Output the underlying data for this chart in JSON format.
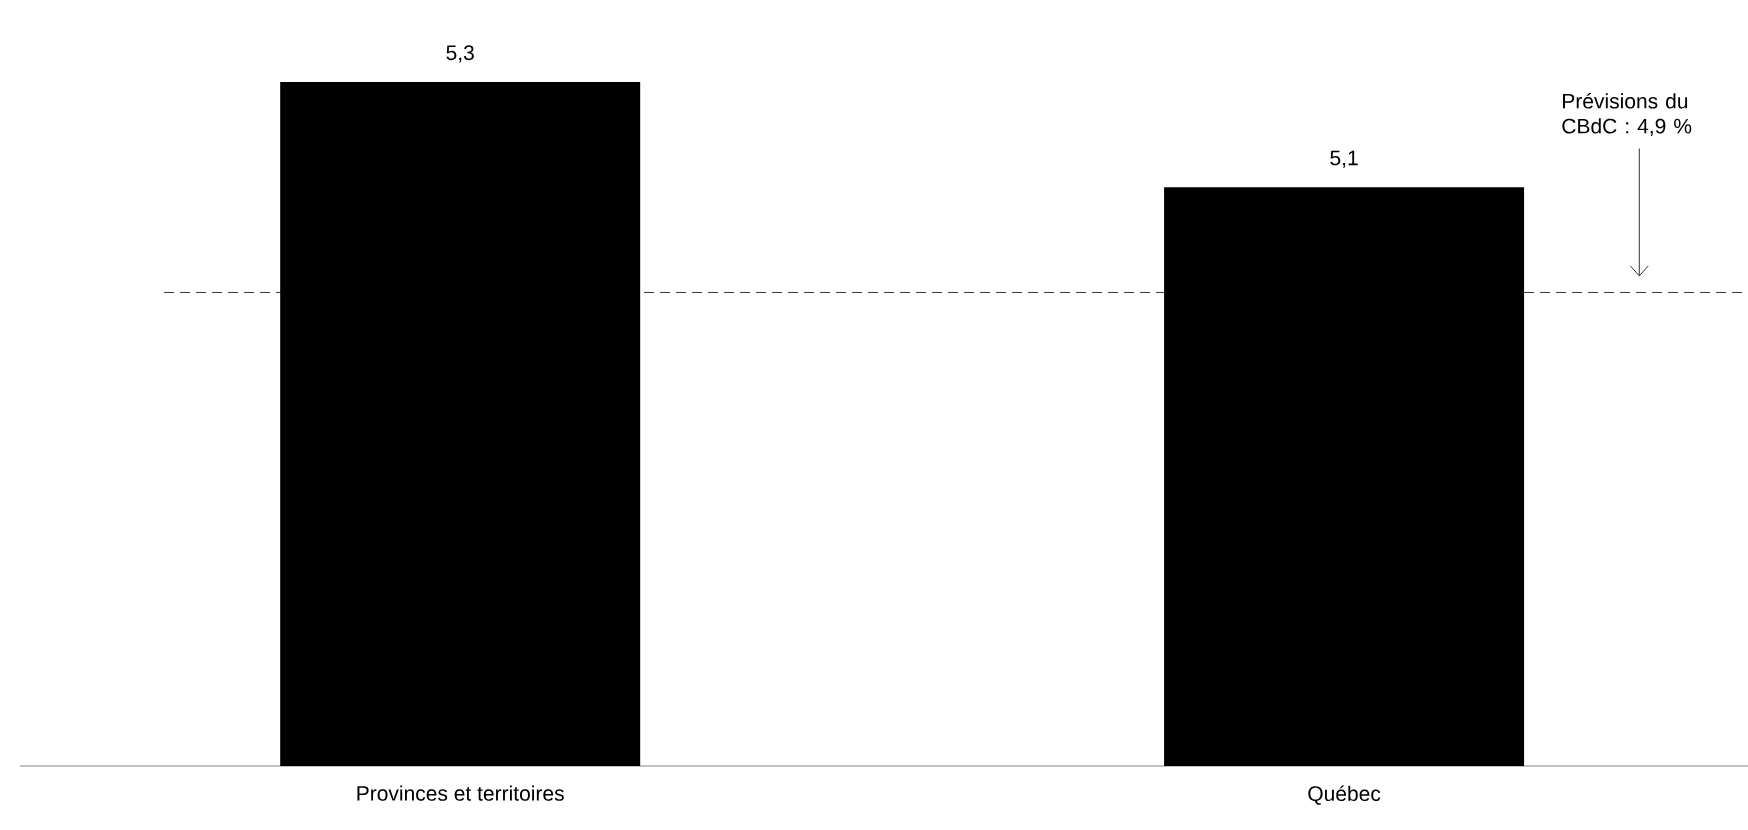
{
  "chart_data": {
    "type": "bar",
    "categories": [
      "Provinces et territoires",
      "Québec"
    ],
    "values": [
      5.3,
      5.1
    ],
    "value_labels": [
      "5,3",
      "5,1"
    ],
    "color": "#000000",
    "ylim": [
      4.0,
      5.3
    ],
    "ref_lines": [
      {
        "axis": "y",
        "value": 4.9,
        "label": "Prévisions du CBdC : 4,9 %",
        "line_style": "dashed",
        "color": "#000000"
      }
    ]
  }
}
